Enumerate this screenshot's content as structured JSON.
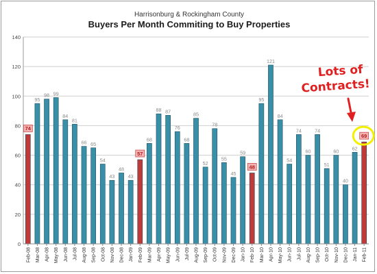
{
  "chart_data": {
    "type": "bar",
    "subtitle": "Harrisonburg & Rockingham County",
    "title": "Buyers Per Month Commiting to Buy Properties",
    "categories": [
      "Feb-08",
      "Mar-08",
      "Apr-08",
      "May-08",
      "Jun-08",
      "Jul-08",
      "Aug-08",
      "Sep-08",
      "Oct-08",
      "Nov-08",
      "Dec-08",
      "Jan-09",
      "Feb-09",
      "Mar-09",
      "Apr-09",
      "May-09",
      "Jun-09",
      "Jul-09",
      "Aug-09",
      "Sep-09",
      "Oct-09",
      "Nov-09",
      "Dec-09",
      "Jan-10",
      "Feb-10",
      "Mar-10",
      "Apr-10",
      "May-10",
      "Jun-10",
      "Jul-10",
      "Aug-10",
      "Sep-10",
      "Oct-10",
      "Nov-10",
      "Dec-10",
      "Jan-11",
      "Feb-11"
    ],
    "values": [
      74,
      95,
      98,
      99,
      84,
      81,
      66,
      65,
      54,
      43,
      48,
      43,
      57,
      68,
      88,
      87,
      76,
      68,
      85,
      52,
      78,
      55,
      45,
      59,
      48,
      95,
      121,
      84,
      54,
      74,
      60,
      74,
      51,
      60,
      40,
      62,
      69
    ],
    "highlighted": [
      "Feb-08",
      "Feb-09",
      "Feb-10",
      "Feb-11"
    ],
    "ylim": [
      0,
      140
    ],
    "yticks": [
      0,
      20,
      40,
      60,
      80,
      100,
      120,
      140
    ],
    "xlabel": "",
    "ylabel": "",
    "grid": true,
    "colors": {
      "bar": "#3a8fa8",
      "bar_highlight": "#c03a3a",
      "label_box": "#f4b4b4",
      "circle": "#f2f000",
      "annotation": "#e02020",
      "grid": "#cfcfcf"
    },
    "annotation": {
      "line1": "Lots of",
      "line2": "Contracts!"
    }
  }
}
